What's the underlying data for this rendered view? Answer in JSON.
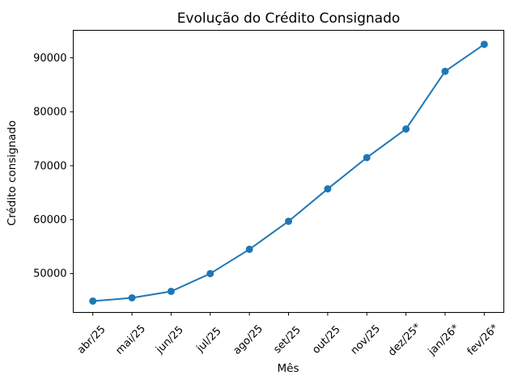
{
  "page": {
    "background": "#ffffff"
  },
  "chart_data": {
    "type": "line",
    "title": "Evolução do Crédito Consignado",
    "xlabel": "Mês",
    "ylabel": "Crédito consignado",
    "categories": [
      "abr/25",
      "mai/25",
      "jun/25",
      "jul/25",
      "ago/25",
      "set/25",
      "out/25",
      "nov/25",
      "dez/25*",
      "jan/26*",
      "fev/26*"
    ],
    "series": [
      {
        "name": "Crédito consignado",
        "values": [
          44900,
          45500,
          46700,
          50000,
          54500,
          59700,
          65700,
          71500,
          76800,
          87500,
          92500
        ]
      }
    ],
    "yticks": [
      50000,
      60000,
      70000,
      80000,
      90000
    ],
    "ytick_labels": [
      "50000",
      "60000",
      "70000",
      "80000",
      "90000"
    ],
    "ylim": [
      42800,
      95100
    ],
    "xlim": [
      -0.5,
      10.5
    ],
    "x_tick_rotation": 45,
    "grid": false,
    "legend": "none",
    "line_color": "#1f77b4",
    "marker": "circle",
    "axis_color": "#000000",
    "text_color": "#000000",
    "background": "#ffffff"
  }
}
